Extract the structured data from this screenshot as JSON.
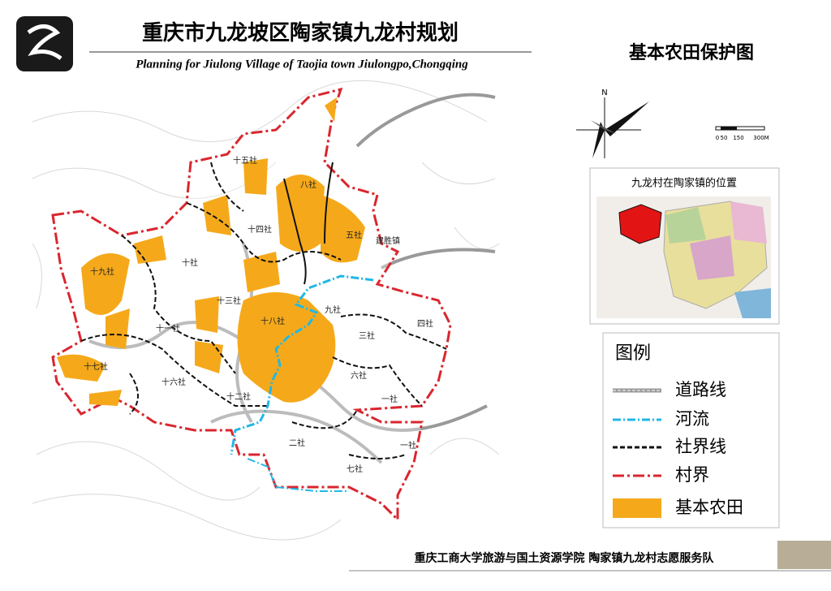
{
  "header": {
    "title": "重庆市九龙坡区陶家镇九龙村规划",
    "subtitle": "Planning for Jiulong Village of Taojia town Jiulongpo,Chongqing"
  },
  "map": {
    "title": "基本农田保护图",
    "north": "N",
    "scale_labels": [
      "0",
      "50",
      "150",
      "300M"
    ],
    "labels": [
      "十五社",
      "八社",
      "十四社",
      "五社",
      "建胜镇",
      "十九社",
      "十社",
      "十三社",
      "九社",
      "十八社",
      "四社",
      "十一社",
      "三社",
      "十七社",
      "六社",
      "十六社",
      "十二社",
      "一社",
      "二社",
      "一社",
      "七社"
    ]
  },
  "inset": {
    "title": "九龙村在陶家镇的位置"
  },
  "legend": {
    "title": "图例",
    "items": [
      "道路线",
      "河流",
      "社界线",
      "村界",
      "基本农田"
    ]
  },
  "footer": {
    "text": "重庆工商大学旅游与国土资源学院 陶家镇九龙村志愿服务队"
  }
}
